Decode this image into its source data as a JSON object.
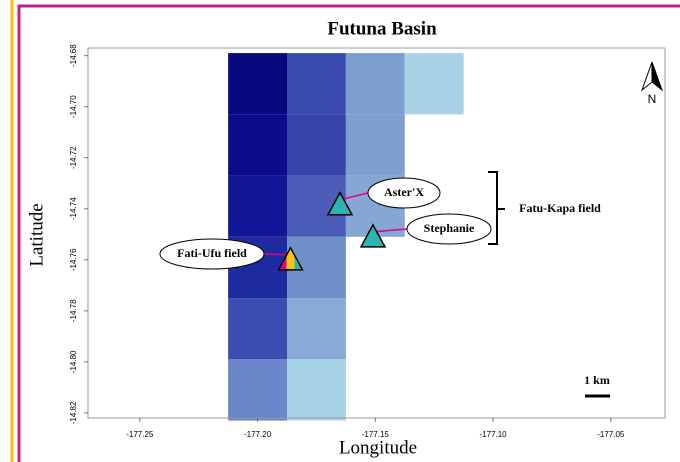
{
  "chart_data": {
    "type": "map",
    "title": "Futuna Basin",
    "x_label": "Longitude",
    "y_label": "Latitude",
    "xlim": [
      -177.272,
      -177.027
    ],
    "ylim": [
      -14.822,
      -14.677
    ],
    "xticks": [
      -177.25,
      {
        "value": -177.2,
        "label": "-177.20"
      },
      -177.15,
      {
        "value": -177.1,
        "label": "-177.10"
      },
      -177.05
    ],
    "yticks": [
      -14.68,
      {
        "value": -14.7,
        "label": "-14.70"
      },
      -14.72,
      -14.74,
      -14.76,
      -14.78,
      {
        "value": -14.8,
        "label": "-14.80"
      },
      -14.82
    ],
    "cells": [
      {
        "lon": [
          -177.2125,
          -177.1875
        ],
        "lat": [
          -14.703,
          -14.679
        ],
        "color": "#08087f"
      },
      {
        "lon": [
          -177.1875,
          -177.1625
        ],
        "lat": [
          -14.703,
          -14.679
        ],
        "color": "#3a4bb0"
      },
      {
        "lon": [
          -177.1625,
          -177.1375
        ],
        "lat": [
          -14.703,
          -14.679
        ],
        "color": "#7d9fd0"
      },
      {
        "lon": [
          -177.1375,
          -177.1125
        ],
        "lat": [
          -14.703,
          -14.679
        ],
        "color": "#a8d3e6"
      },
      {
        "lon": [
          -177.2125,
          -177.1875
        ],
        "lat": [
          -14.727,
          -14.703
        ],
        "color": "#0c0c8a"
      },
      {
        "lon": [
          -177.1875,
          -177.1625
        ],
        "lat": [
          -14.727,
          -14.703
        ],
        "color": "#3444a8"
      },
      {
        "lon": [
          -177.1625,
          -177.1375
        ],
        "lat": [
          -14.727,
          -14.703
        ],
        "color": "#7e9fd0"
      },
      {
        "lon": [
          -177.2125,
          -177.1875
        ],
        "lat": [
          -14.751,
          -14.727
        ],
        "color": "#121696"
      },
      {
        "lon": [
          -177.1875,
          -177.1625
        ],
        "lat": [
          -14.751,
          -14.727
        ],
        "color": "#4a5cb8"
      },
      {
        "lon": [
          -177.1625,
          -177.1375
        ],
        "lat": [
          -14.751,
          -14.727
        ],
        "color": "#86a6d3"
      },
      {
        "lon": [
          -177.2125,
          -177.1875
        ],
        "lat": [
          -14.775,
          -14.751
        ],
        "color": "#1e2aa0"
      },
      {
        "lon": [
          -177.1875,
          -177.1625
        ],
        "lat": [
          -14.775,
          -14.751
        ],
        "color": "#7090c9"
      },
      {
        "lon": [
          -177.2125,
          -177.1875
        ],
        "lat": [
          -14.799,
          -14.775
        ],
        "color": "#3a4db0"
      },
      {
        "lon": [
          -177.1875,
          -177.1625
        ],
        "lat": [
          -14.799,
          -14.775
        ],
        "color": "#8aaad6"
      },
      {
        "lon": [
          -177.2125,
          -177.1875
        ],
        "lat": [
          -14.823,
          -14.799
        ],
        "color": "#6b86c8"
      },
      {
        "lon": [
          -177.1875,
          -177.1625
        ],
        "lat": [
          -14.823,
          -14.799
        ],
        "color": "#a8d3e6"
      }
    ],
    "sites": [
      {
        "name": "Aster'X",
        "lon": -177.165,
        "lat": -14.7388,
        "colors": [
          "#2ab5b0"
        ]
      },
      {
        "name": "Stephanie",
        "lon": -177.151,
        "lat": -14.7514,
        "colors": [
          "#2ab5b0"
        ]
      },
      {
        "name": "Fati-Ufu field",
        "lon": -177.186,
        "lat": -14.7604,
        "colors": [
          "#e6007e",
          "#f5c518",
          "#2ab5b0"
        ]
      }
    ],
    "group_label": "Fatu-Kapa field",
    "scale_bar_label": "1 km",
    "north_label": "N"
  }
}
